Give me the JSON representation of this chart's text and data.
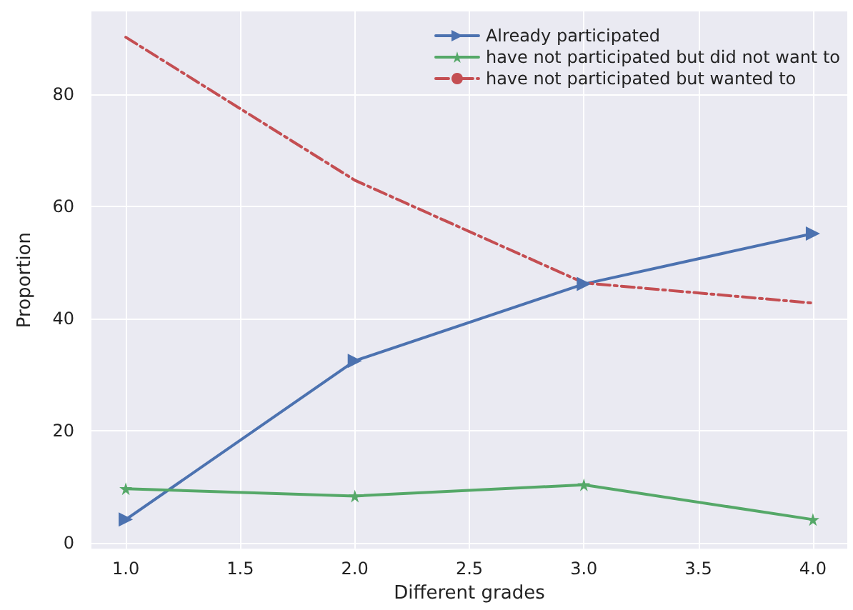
{
  "chart_data": {
    "type": "line",
    "xlabel": "Different grades",
    "ylabel": "Proportion",
    "x": [
      1,
      2,
      3,
      4
    ],
    "series": [
      {
        "name": "Already participated",
        "color": "#4c72b0",
        "values": [
          4.2,
          32.5,
          46.2,
          55.2
        ],
        "marker": "triangle",
        "line_style": "solid"
      },
      {
        "name": "have not participated but did not want to",
        "color": "#55a868",
        "values": [
          9.7,
          8.4,
          10.4,
          4.2
        ],
        "marker": "star",
        "line_style": "solid"
      },
      {
        "name": "have not participated but wanted to",
        "color": "#c44e52",
        "values": [
          90.2,
          64.7,
          46.4,
          42.8
        ],
        "marker": "none",
        "line_style": "dashed"
      }
    ],
    "xlim": [
      0.85,
      4.15
    ],
    "ylim": [
      -1,
      94.8
    ],
    "xticks": [
      {
        "value": 1,
        "label": "1.0"
      },
      {
        "value": 1.5,
        "label": "1.5"
      },
      {
        "value": 2,
        "label": "2.0"
      },
      {
        "value": 2.5,
        "label": "2.5"
      },
      {
        "value": 3,
        "label": "3.0"
      },
      {
        "value": 3.5,
        "label": "3.5"
      },
      {
        "value": 4,
        "label": "4.0"
      }
    ],
    "yticks": [
      0,
      20,
      40,
      60,
      80
    ],
    "grid": true,
    "legend": "top right"
  }
}
